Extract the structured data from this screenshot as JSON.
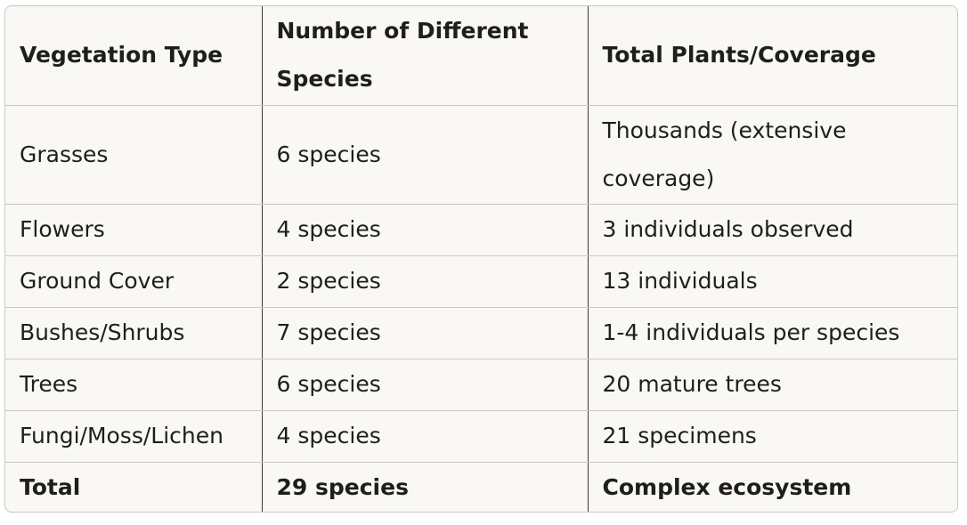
{
  "table": {
    "headers": [
      "Vegetation Type",
      "Number of Different Species",
      "Total Plants/Coverage"
    ],
    "rows": [
      [
        "Grasses",
        "6 species",
        "Thousands (extensive coverage)"
      ],
      [
        "Flowers",
        "4 species",
        "3 individuals observed"
      ],
      [
        "Ground Cover",
        "2 species",
        "13 individuals"
      ],
      [
        "Bushes/Shrubs",
        "7 species",
        "1-4 individuals per species"
      ],
      [
        "Trees",
        "6 species",
        "20 mature trees"
      ],
      [
        "Fungi/Moss/Lichen",
        "4 species",
        "21 specimens"
      ]
    ],
    "total": [
      "Total",
      "29 species",
      "Complex ecosystem"
    ]
  }
}
